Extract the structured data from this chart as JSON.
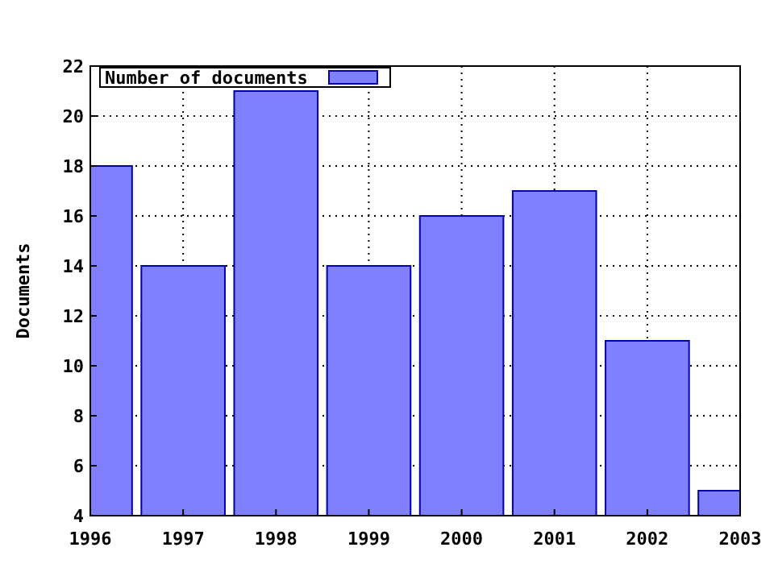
{
  "chart_data": {
    "type": "bar",
    "ylabel": "Documents",
    "x": [
      1996,
      1997,
      1998,
      1999,
      2000,
      2001,
      2002,
      2003
    ],
    "series": [
      {
        "name": "Number of documents",
        "color": "#8080ff",
        "values": [
          18,
          14,
          21,
          14,
          16,
          17,
          11,
          5
        ]
      }
    ],
    "xlim": [
      1996,
      2003
    ],
    "xticks": [
      1996,
      1997,
      1998,
      1999,
      2000,
      2001,
      2002,
      2003
    ],
    "ylim": [
      4,
      22
    ],
    "yticks": [
      4,
      6,
      8,
      10,
      12,
      14,
      16,
      18,
      20,
      22
    ],
    "grid": true,
    "legend": "top left"
  }
}
